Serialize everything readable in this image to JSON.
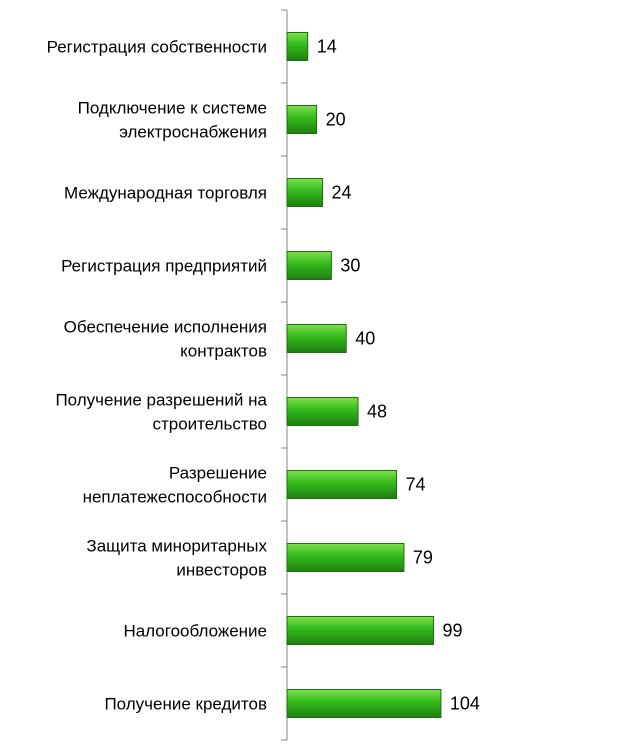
{
  "chart_data": {
    "type": "bar",
    "orientation": "horizontal",
    "title": "",
    "xlabel": "",
    "ylabel": "",
    "categories": [
      [
        "Регистрация собственности"
      ],
      [
        "Подключение к системе",
        "электроснабжения"
      ],
      [
        "Международная торговля"
      ],
      [
        "Регистрация предприятий"
      ],
      [
        "Обеспечение исполнения",
        "контрактов"
      ],
      [
        "Получение разрешений на",
        "строительство"
      ],
      [
        "Разрешение",
        "неплатежеспособности"
      ],
      [
        "Защита миноритарных",
        "инвесторов"
      ],
      [
        "Налогообложение"
      ],
      [
        "Получение кредитов"
      ]
    ],
    "values": [
      14,
      20,
      24,
      30,
      40,
      48,
      74,
      79,
      99,
      104
    ],
    "value_labels": [
      "14",
      "20",
      "24",
      "30",
      "40",
      "48",
      "74",
      "79",
      "99",
      "104"
    ],
    "axis_reversed": true,
    "xlim": [
      0,
      200
    ],
    "grid": false,
    "legend": "none",
    "colors": {
      "bar_light": "#7de04c",
      "bar_mid": "#33b91b",
      "bar_dark": "#1f7f10",
      "bar_border": "#1e6f0f",
      "axis": "#868686",
      "text": "#000000"
    }
  }
}
